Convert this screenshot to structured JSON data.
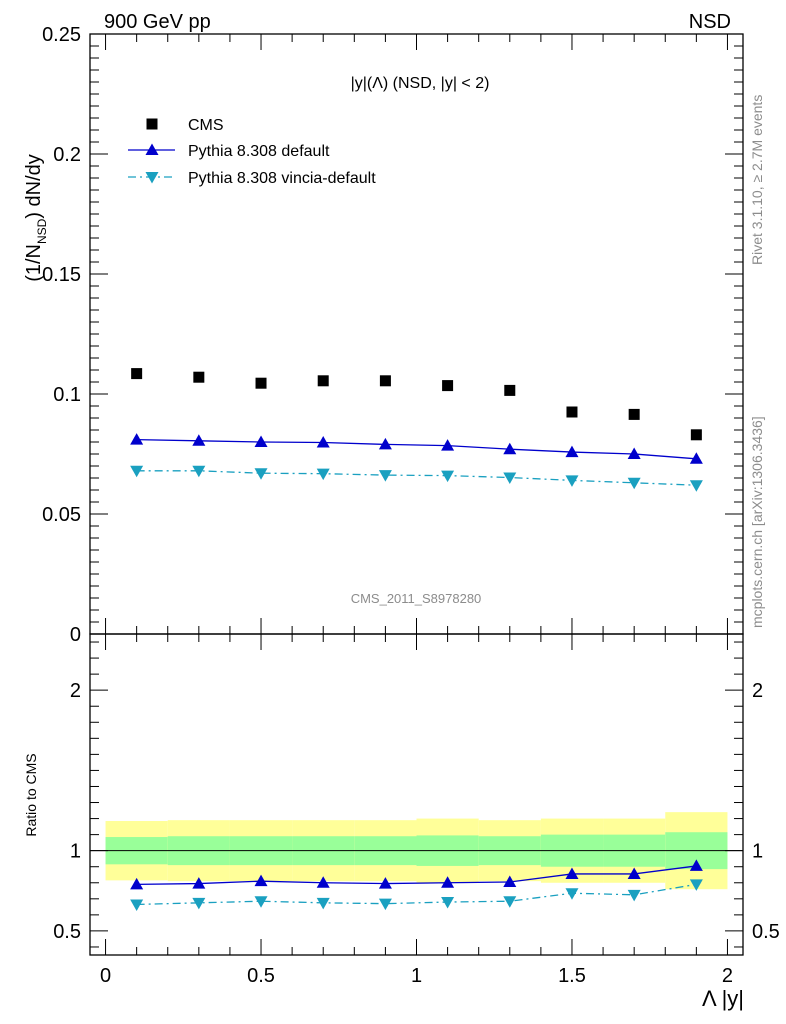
{
  "header": {
    "left": "900 GeV pp",
    "right": "NSD",
    "plot_title": "|y|(Λ) (NSD, |y| < 2)",
    "side_top": "Rivet 3.1.10, ≥ 2.7M events",
    "side_bottom": "mcplots.cern.ch [arXiv:1306.3436]",
    "analysis_id": "CMS_2011_S8978280"
  },
  "chart_data": [
    {
      "type": "scatter",
      "title": "|y|(Λ) (NSD, |y| < 2)",
      "ylabel": "(1/N_NSD) dN/dy",
      "xlim": [
        -0.05,
        2.05
      ],
      "ylim": [
        0,
        0.25
      ],
      "y_ticks": [
        "0",
        "0.05",
        "0.1",
        "0.15",
        "0.2",
        "0.25"
      ],
      "legend_position": "top-left",
      "x": [
        0.1,
        0.3,
        0.5,
        0.7,
        0.9,
        1.1,
        1.3,
        1.5,
        1.7,
        1.9
      ],
      "series": [
        {
          "name": "CMS",
          "marker": "square",
          "color": "#000000",
          "values": [
            0.1085,
            0.107,
            0.1045,
            0.1055,
            0.1055,
            0.1035,
            0.1015,
            0.0925,
            0.0915,
            0.083
          ]
        },
        {
          "name": "Pythia 8.308 default",
          "marker": "triangle-up",
          "color": "#0000cc",
          "line": "solid",
          "values": [
            0.081,
            0.0805,
            0.08,
            0.0798,
            0.079,
            0.0785,
            0.077,
            0.0758,
            0.075,
            0.073
          ]
        },
        {
          "name": "Pythia 8.308 vincia-default",
          "marker": "triangle-down",
          "color": "#1aa0c0",
          "line": "dashdot",
          "values": [
            0.068,
            0.068,
            0.067,
            0.0668,
            0.0662,
            0.066,
            0.0652,
            0.064,
            0.063,
            0.062
          ]
        }
      ]
    },
    {
      "type": "line",
      "ylabel": "Ratio to CMS",
      "xlabel": "Λ |y|",
      "xlim": [
        -0.05,
        2.05
      ],
      "ylim": [
        0.35,
        2.35
      ],
      "x_ticks": [
        "0",
        "0.5",
        "1",
        "1.5",
        "2"
      ],
      "y_ticks": [
        "0.5",
        "1",
        "2"
      ],
      "x": [
        0.1,
        0.3,
        0.5,
        0.7,
        0.9,
        1.1,
        1.3,
        1.5,
        1.7,
        1.9
      ],
      "bins": [
        [
          0.0,
          0.2
        ],
        [
          0.2,
          0.4
        ],
        [
          0.4,
          0.6
        ],
        [
          0.6,
          0.8
        ],
        [
          0.8,
          1.0
        ],
        [
          1.0,
          1.2
        ],
        [
          1.2,
          1.4
        ],
        [
          1.4,
          1.6
        ],
        [
          1.6,
          1.8
        ],
        [
          1.8,
          2.0
        ]
      ],
      "band_stat": [
        [
          0.915,
          1.085
        ],
        [
          0.91,
          1.09
        ],
        [
          0.91,
          1.09
        ],
        [
          0.91,
          1.09
        ],
        [
          0.91,
          1.09
        ],
        [
          0.905,
          1.095
        ],
        [
          0.91,
          1.09
        ],
        [
          0.9,
          1.1
        ],
        [
          0.9,
          1.1
        ],
        [
          0.885,
          1.115
        ]
      ],
      "band_total": [
        [
          0.815,
          1.185
        ],
        [
          0.81,
          1.19
        ],
        [
          0.81,
          1.19
        ],
        [
          0.81,
          1.19
        ],
        [
          0.81,
          1.19
        ],
        [
          0.8,
          1.2
        ],
        [
          0.81,
          1.19
        ],
        [
          0.8,
          1.2
        ],
        [
          0.8,
          1.2
        ],
        [
          0.76,
          1.24
        ]
      ],
      "band_colors": {
        "total": "#ffff99",
        "stat": "#99ff99"
      },
      "series": [
        {
          "name": "Pythia 8.308 default",
          "color": "#0000cc",
          "marker": "triangle-up",
          "values": [
            0.79,
            0.795,
            0.81,
            0.8,
            0.795,
            0.8,
            0.805,
            0.855,
            0.855,
            0.905
          ]
        },
        {
          "name": "Pythia 8.308 vincia-default",
          "color": "#1aa0c0",
          "marker": "triangle-down",
          "values": [
            0.665,
            0.675,
            0.685,
            0.675,
            0.67,
            0.68,
            0.685,
            0.735,
            0.725,
            0.79
          ]
        }
      ]
    }
  ]
}
